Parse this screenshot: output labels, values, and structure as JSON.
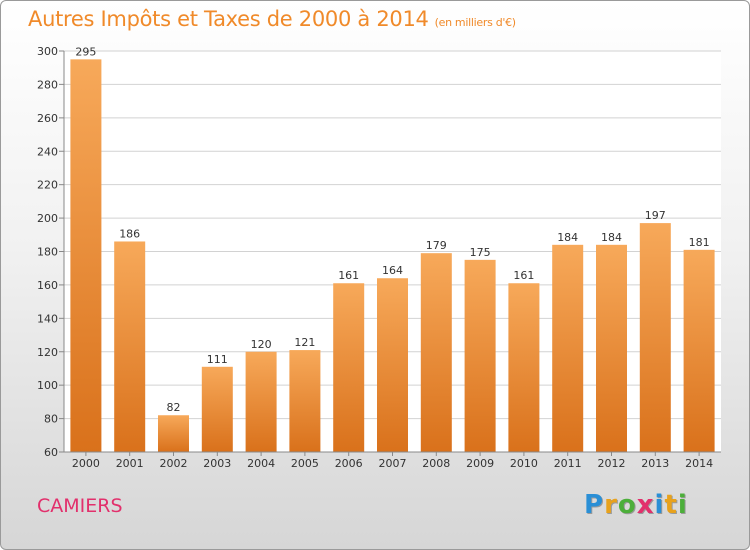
{
  "title": "Autres Impôts et Taxes de 2000 à 2014",
  "unit_note": "(en milliers d'€)",
  "commune": "CAMIERS",
  "logo": {
    "letters": [
      "P",
      "r",
      "o",
      "x",
      "i",
      "t",
      "i"
    ],
    "colors": [
      "#2a8fd6",
      "#e8a21c",
      "#4caf3a",
      "#e2306c",
      "#2a8fd6",
      "#e8a21c",
      "#4caf3a"
    ]
  },
  "colors": {
    "bar_top": "#f7a95a",
    "bar_bottom": "#d9711b",
    "grid": "#d2d2d2",
    "axis_text": "#333333"
  },
  "chart_data": {
    "type": "bar",
    "categories": [
      "2000",
      "2001",
      "2002",
      "2003",
      "2004",
      "2005",
      "2006",
      "2007",
      "2008",
      "2009",
      "2010",
      "2011",
      "2012",
      "2013",
      "2014"
    ],
    "values": [
      295,
      186,
      82,
      111,
      120,
      121,
      161,
      164,
      179,
      175,
      161,
      184,
      184,
      197,
      181
    ],
    "ylim": [
      60,
      300
    ],
    "yticks": [
      60,
      80,
      100,
      120,
      140,
      160,
      180,
      200,
      220,
      240,
      260,
      280,
      300
    ],
    "grid": true,
    "data_labels": true
  }
}
